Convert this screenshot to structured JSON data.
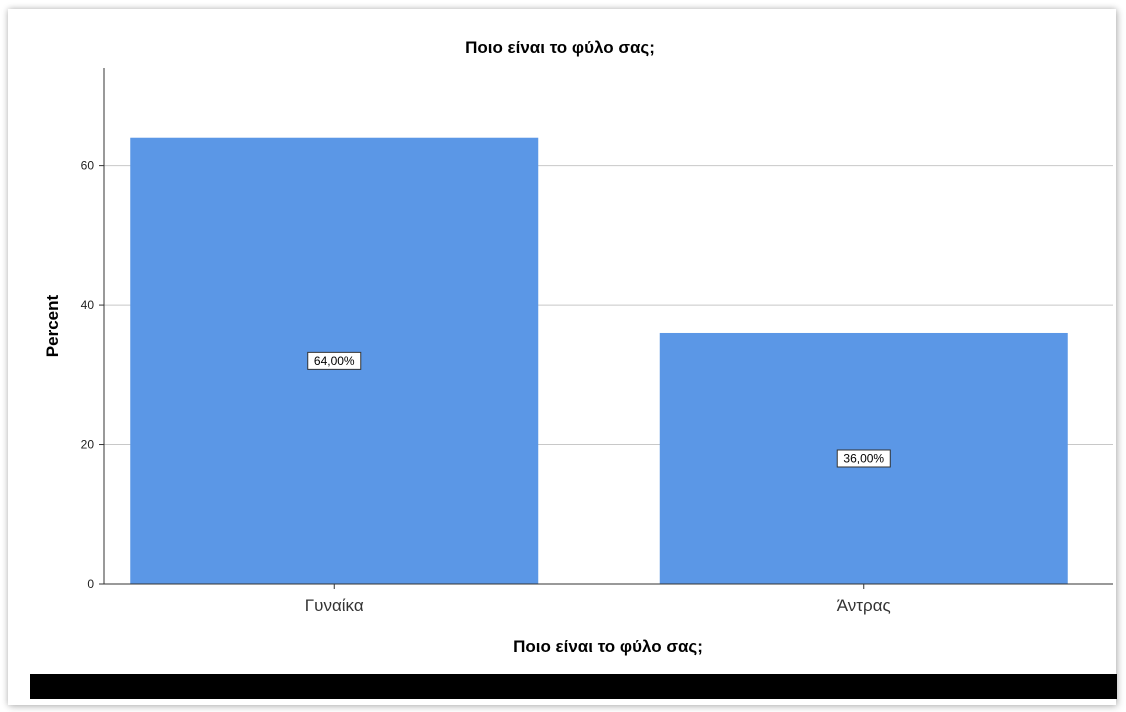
{
  "chart_data": {
    "type": "bar",
    "title": "Ποιο είναι το φύλο σας;",
    "xlabel": "Ποιο είναι το φύλο σας;",
    "ylabel": "Percent",
    "categories": [
      "Γυναίκα",
      "Άντρας"
    ],
    "values": [
      64.0,
      36.0
    ],
    "data_labels": [
      "64,00%",
      "36,00%"
    ],
    "yticks": [
      0,
      20,
      40,
      60
    ],
    "ytick_labels": [
      "0",
      "20",
      "40",
      "60"
    ],
    "ylim": [
      0,
      74
    ],
    "grid": true,
    "bar_color": "#5b97e6"
  }
}
